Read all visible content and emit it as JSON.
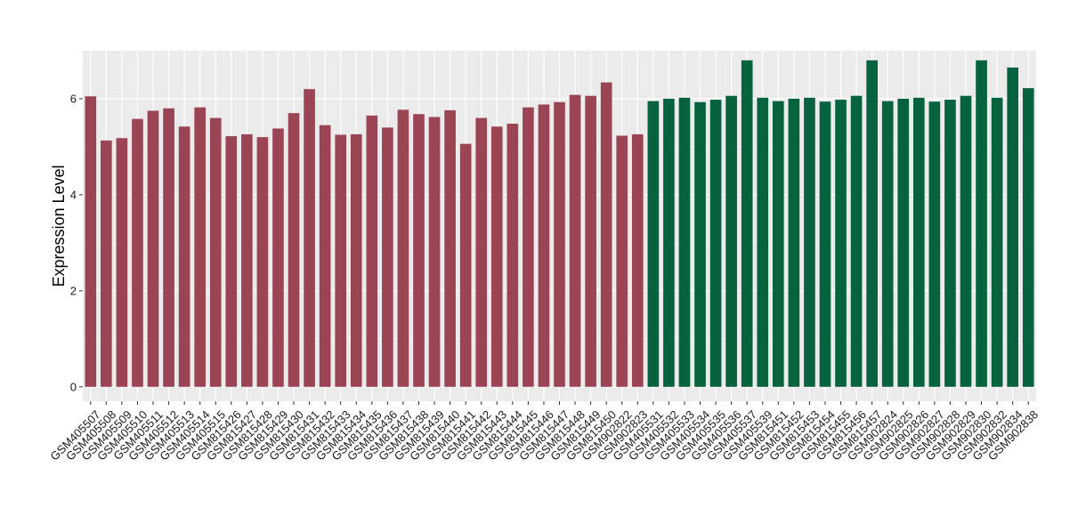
{
  "chart_data": {
    "type": "bar",
    "xlabel": "",
    "ylabel": "Expression Level",
    "ylim": [
      -0.3,
      7.0
    ],
    "yticks": [
      0,
      2,
      4,
      6
    ],
    "grid": true,
    "background": "#ebebeb",
    "gridline_color": "#ffffff",
    "categories": [
      "GSM405507",
      "GSM405508",
      "GSM405509",
      "GSM405510",
      "GSM405511",
      "GSM405512",
      "GSM405513",
      "GSM405514",
      "GSM405515",
      "GSM815426",
      "GSM815427",
      "GSM815428",
      "GSM815429",
      "GSM815430",
      "GSM815431",
      "GSM815432",
      "GSM815433",
      "GSM815434",
      "GSM815435",
      "GSM815436",
      "GSM815437",
      "GSM815438",
      "GSM815439",
      "GSM815440",
      "GSM815441",
      "GSM815442",
      "GSM815443",
      "GSM815444",
      "GSM815445",
      "GSM815446",
      "GSM815447",
      "GSM815448",
      "GSM815449",
      "GSM815450",
      "GSM902822",
      "GSM902823",
      "GSM405531",
      "GSM405532",
      "GSM405533",
      "GSM405534",
      "GSM405535",
      "GSM405536",
      "GSM405537",
      "GSM405539",
      "GSM815451",
      "GSM815452",
      "GSM815453",
      "GSM815454",
      "GSM815455",
      "GSM815456",
      "GSM815457",
      "GSM902824",
      "GSM902825",
      "GSM902826",
      "GSM902827",
      "GSM902828",
      "GSM902829",
      "GSM902830",
      "GSM902832",
      "GSM902834",
      "GSM902838"
    ],
    "values": [
      6.05,
      5.13,
      5.18,
      5.58,
      5.75,
      5.8,
      5.42,
      5.82,
      5.6,
      5.22,
      5.26,
      5.2,
      5.38,
      5.7,
      6.2,
      5.45,
      5.25,
      5.26,
      5.65,
      5.4,
      5.77,
      5.68,
      5.62,
      5.76,
      5.06,
      5.6,
      5.42,
      5.48,
      5.82,
      5.88,
      5.93,
      6.08,
      6.06,
      6.34,
      5.23,
      5.26,
      5.95,
      6.0,
      6.02,
      5.93,
      5.98,
      6.06,
      6.8,
      6.02,
      5.95,
      6.0,
      6.02,
      5.94,
      5.98,
      6.06,
      6.8,
      5.95,
      6.0,
      6.02,
      5.94,
      5.98,
      6.06,
      6.8,
      6.02,
      6.65,
      6.22
    ],
    "group_colors": [
      "#9b4453",
      "#06633e"
    ],
    "groups": [
      0,
      0,
      0,
      0,
      0,
      0,
      0,
      0,
      0,
      0,
      0,
      0,
      0,
      0,
      0,
      0,
      0,
      0,
      0,
      0,
      0,
      0,
      0,
      0,
      0,
      0,
      0,
      0,
      0,
      0,
      0,
      0,
      0,
      0,
      0,
      0,
      1,
      1,
      1,
      1,
      1,
      1,
      1,
      1,
      1,
      1,
      1,
      1,
      1,
      1,
      1,
      1,
      1,
      1,
      1,
      1,
      1,
      1,
      1,
      1,
      1
    ]
  }
}
